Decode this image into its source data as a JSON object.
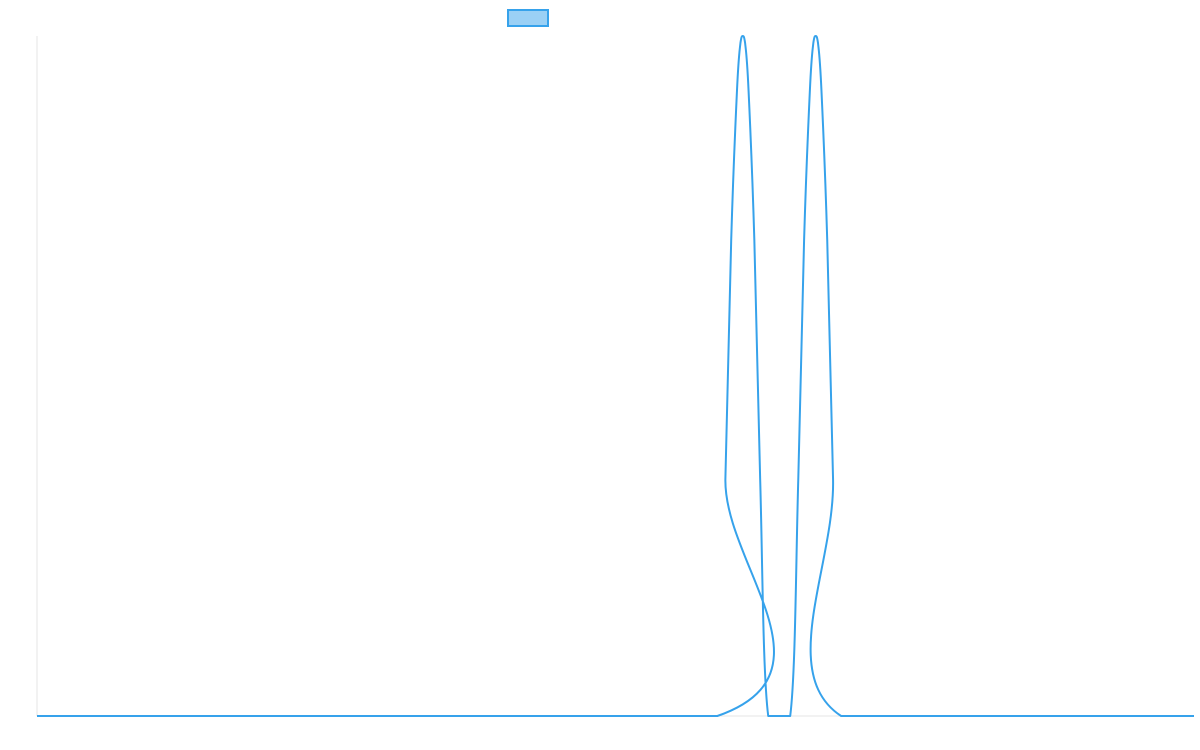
{
  "chart_data": {
    "type": "line",
    "title": "",
    "xlabel": "",
    "ylabel": "",
    "grid": false,
    "legend": {
      "placement": "top-center",
      "entries": [
        {
          "label": "",
          "swatch_fill": "#9ad0f5",
          "swatch_stroke": "#36a2eb"
        }
      ]
    },
    "xlim": [
      0,
      100
    ],
    "ylim": [
      0,
      1
    ],
    "series": [
      {
        "color": "#36a2eb",
        "x": [
          0,
          58.8,
          59.5,
          60.0,
          60.5,
          60.8,
          61.0,
          61.2,
          61.5,
          62.0,
          62.5,
          63.2,
          65.1,
          65.8,
          66.3,
          66.8,
          67.1,
          67.3,
          67.5,
          67.8,
          68.3,
          68.8,
          69.5,
          100
        ],
        "y": [
          0,
          0,
          0.35,
          0.7,
          0.92,
          0.99,
          1.0,
          0.99,
          0.92,
          0.7,
          0.35,
          0,
          0,
          0.35,
          0.7,
          0.92,
          0.99,
          1.0,
          0.99,
          0.92,
          0.7,
          0.35,
          0,
          0
        ]
      }
    ]
  }
}
